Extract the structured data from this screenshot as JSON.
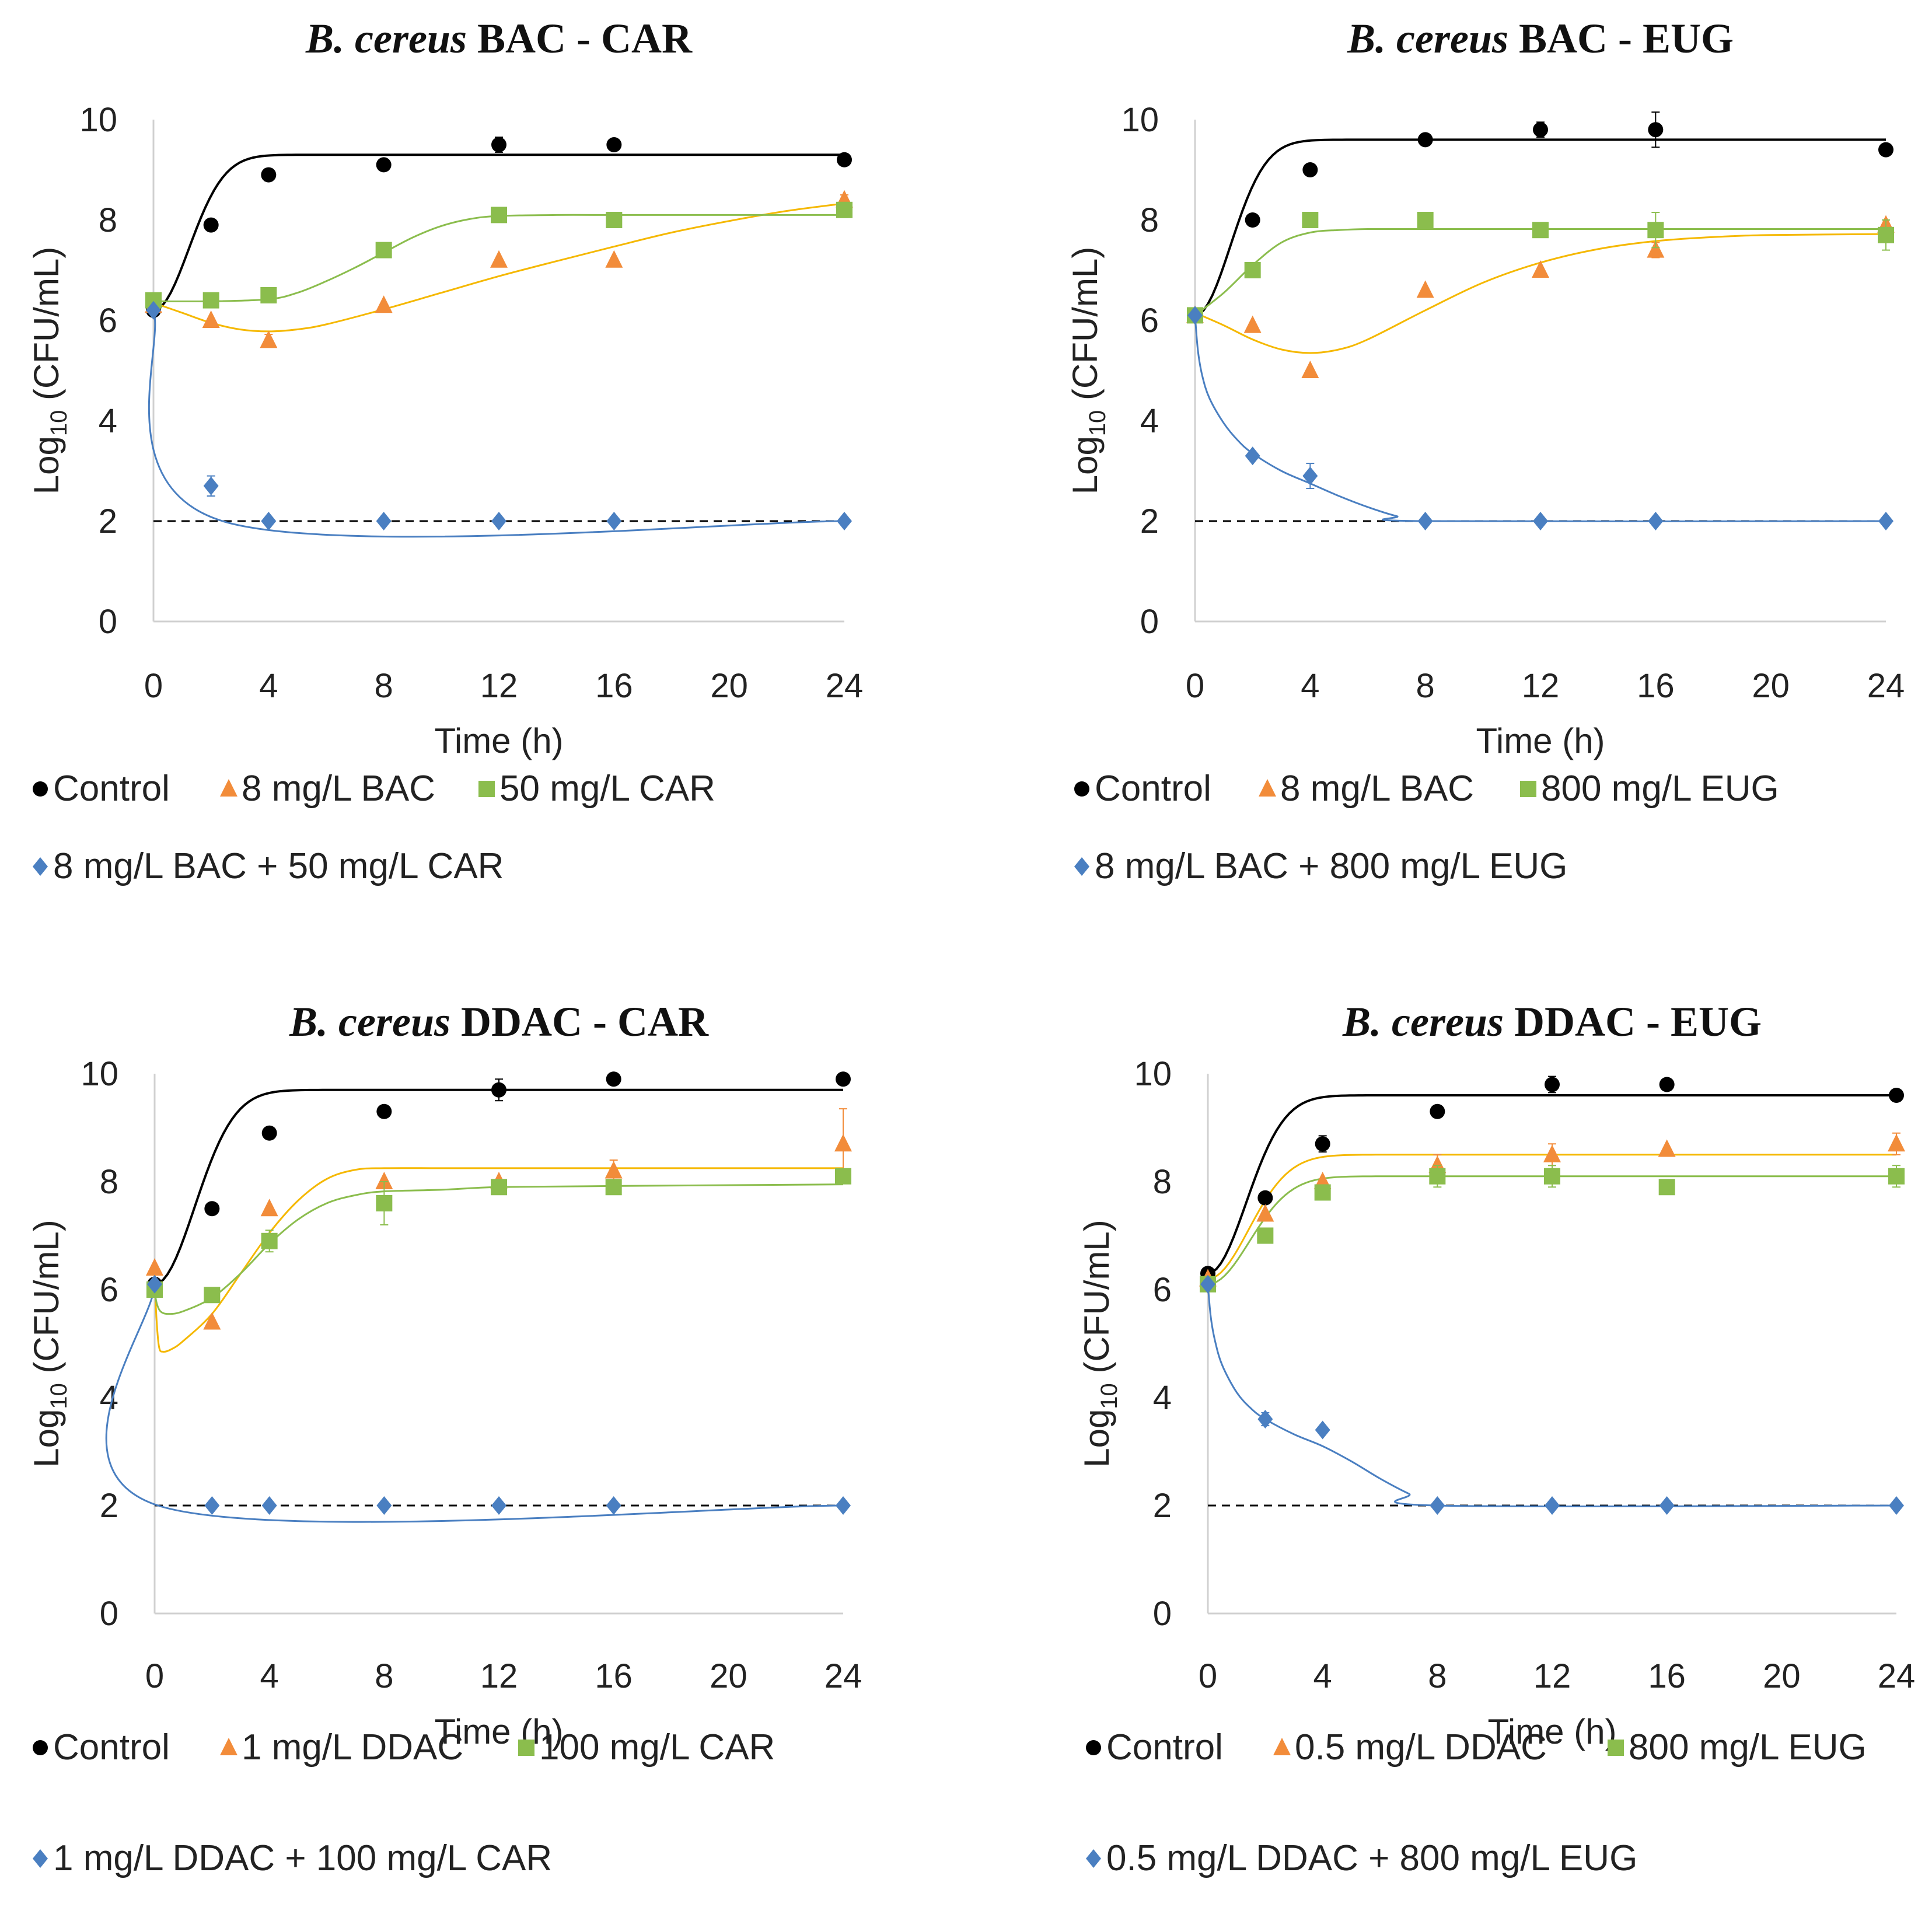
{
  "colors": {
    "control": "#000000",
    "qac": "#f28c3a",
    "phyto": "#8bbd4d",
    "combo": "#4a7fc1",
    "qac_fit": "#f5b800",
    "phyto_fit": "#8bbd4d",
    "axis": "#d0d0d0",
    "detection_limit": "#000000"
  },
  "chart_data": [
    {
      "type": "scatter",
      "panel": "top-left",
      "title_italic": "B. cereus",
      "title_rest": " BAC - CAR",
      "xlabel": "Time (h)",
      "ylabel_main": "Log",
      "ylabel_sub": "10",
      "ylabel_rest": " (CFU/mL)",
      "xlim": [
        0,
        24
      ],
      "ylim": [
        0,
        10
      ],
      "xticks": [
        0,
        4,
        8,
        12,
        16,
        20,
        24
      ],
      "yticks": [
        0,
        2,
        4,
        6,
        8,
        10
      ],
      "detection_limit": 2,
      "series": [
        {
          "name": "Control",
          "marker": "circle",
          "color": "control",
          "fit_color": "control",
          "x": [
            0,
            2,
            4,
            8,
            12,
            16,
            24
          ],
          "y": [
            6.2,
            7.9,
            8.9,
            9.1,
            9.5,
            9.5,
            9.2
          ],
          "err": [
            0,
            0,
            0.12,
            0,
            0.15,
            0,
            0
          ],
          "fit": {
            "kind": "logistic",
            "y0": 6.2,
            "ymax": 9.3,
            "mu": 1.0,
            "lag": 0
          }
        },
        {
          "name": "8 mg/L BAC",
          "marker": "triangle",
          "color": "qac",
          "fit_color": "qac_fit",
          "x": [
            0,
            2,
            4,
            8,
            12,
            16,
            24
          ],
          "y": [
            6.3,
            6.0,
            5.6,
            6.3,
            7.2,
            7.2,
            8.4
          ],
          "err": [
            0,
            0,
            0.12,
            0,
            0,
            0,
            0.1
          ],
          "fit": {
            "kind": "points",
            "x": [
              0,
              1,
              2,
              3,
              4,
              5,
              6,
              8,
              10,
              12,
              14,
              16,
              18,
              20,
              22,
              24
            ],
            "y": [
              6.35,
              6.15,
              5.95,
              5.82,
              5.78,
              5.82,
              5.92,
              6.22,
              6.55,
              6.88,
              7.18,
              7.47,
              7.75,
              7.98,
              8.18,
              8.33
            ]
          }
        },
        {
          "name": "50 mg/L CAR",
          "marker": "square",
          "color": "phyto",
          "fit_color": "phyto_fit",
          "x": [
            0,
            2,
            4,
            8,
            12,
            16,
            24
          ],
          "y": [
            6.4,
            6.4,
            6.5,
            7.4,
            8.1,
            8.0,
            8.2
          ],
          "err": [
            0,
            0,
            0,
            0,
            0,
            0.12,
            0.15
          ],
          "fit": {
            "kind": "points",
            "x": [
              0,
              2,
              4,
              5,
              6,
              7,
              8,
              9,
              10,
              11,
              12,
              14,
              16,
              20,
              24
            ],
            "y": [
              6.38,
              6.38,
              6.42,
              6.55,
              6.78,
              7.05,
              7.35,
              7.65,
              7.88,
              8.02,
              8.08,
              8.1,
              8.1,
              8.1,
              8.1
            ]
          }
        },
        {
          "name": "8 mg/L BAC + 50 mg/L CAR",
          "marker": "diamond",
          "color": "combo",
          "fit_color": "combo",
          "x": [
            0,
            2,
            4,
            8,
            12,
            16,
            24
          ],
          "y": [
            6.2,
            2.7,
            2.0,
            2.0,
            2.0,
            2.0,
            2.0
          ],
          "err": [
            0,
            0.2,
            0,
            0,
            0,
            0,
            0
          ],
          "fit": {
            "kind": "points",
            "x": [
              0,
              2.4,
              24
            ],
            "y": [
              6.2,
              2.0,
              2.0
            ]
          }
        }
      ]
    },
    {
      "type": "scatter",
      "panel": "top-right",
      "title_italic": "B. cereus",
      "title_rest": " BAC - EUG",
      "xlabel": "Time (h)",
      "ylabel_main": "Log",
      "ylabel_sub": "10",
      "ylabel_rest": " (CFU/mL)",
      "xlim": [
        0,
        24
      ],
      "ylim": [
        0,
        10
      ],
      "xticks": [
        0,
        4,
        8,
        12,
        16,
        20,
        24
      ],
      "yticks": [
        0,
        2,
        4,
        6,
        8,
        10
      ],
      "detection_limit": 2,
      "series": [
        {
          "name": "Control",
          "marker": "circle",
          "color": "control",
          "fit_color": "control",
          "x": [
            0,
            2,
            4,
            8,
            12,
            16,
            24
          ],
          "y": [
            6.1,
            8.0,
            9.0,
            9.6,
            9.8,
            9.8,
            9.4
          ],
          "err": [
            0,
            0,
            0,
            0,
            0.15,
            0.35,
            0
          ],
          "fit": {
            "kind": "logistic",
            "y0": 6.1,
            "ymax": 9.6,
            "mu": 1.0,
            "lag": 0
          }
        },
        {
          "name": "8 mg/L BAC",
          "marker": "triangle",
          "color": "qac",
          "fit_color": "qac_fit",
          "x": [
            0,
            2,
            4,
            8,
            12,
            16,
            24
          ],
          "y": [
            6.1,
            5.9,
            5.0,
            6.6,
            7.0,
            7.4,
            7.9
          ],
          "err": [
            0,
            0,
            0,
            0,
            0,
            0.15,
            0
          ],
          "fit": {
            "kind": "points",
            "x": [
              0,
              1,
              2,
              3,
              4,
              5,
              6,
              8,
              10,
              12,
              14,
              16,
              18,
              20,
              24
            ],
            "y": [
              6.15,
              5.9,
              5.62,
              5.42,
              5.35,
              5.42,
              5.62,
              6.2,
              6.75,
              7.15,
              7.42,
              7.58,
              7.66,
              7.7,
              7.72
            ]
          }
        },
        {
          "name": "800 mg/L EUG",
          "marker": "square",
          "color": "phyto",
          "fit_color": "phyto_fit",
          "x": [
            0,
            2,
            4,
            8,
            12,
            16,
            24
          ],
          "y": [
            6.1,
            7.0,
            8.0,
            8.0,
            7.8,
            7.8,
            7.7
          ],
          "err": [
            0,
            0,
            0,
            0,
            0.1,
            0.35,
            0.3
          ],
          "fit": {
            "kind": "points",
            "x": [
              0,
              1,
              2,
              3,
              4,
              5,
              6,
              8,
              12,
              16,
              24
            ],
            "y": [
              6.1,
              6.55,
              7.1,
              7.55,
              7.75,
              7.8,
              7.82,
              7.82,
              7.82,
              7.82,
              7.82
            ]
          }
        },
        {
          "name": "8 mg/L BAC + 800 mg/L EUG",
          "marker": "diamond",
          "color": "combo",
          "fit_color": "combo",
          "x": [
            0,
            2,
            4,
            8,
            12,
            16,
            24
          ],
          "y": [
            6.1,
            3.3,
            2.9,
            2.0,
            2.0,
            2.0,
            2.0
          ],
          "err": [
            0,
            0,
            0.25,
            0,
            0,
            0,
            0
          ],
          "fit": {
            "kind": "points",
            "x": [
              0,
              0.1,
              0.25,
              0.5,
              1,
              1.5,
              2,
              3,
              4,
              5,
              6,
              7,
              8,
              24
            ],
            "y": [
              6.1,
              5.4,
              4.9,
              4.45,
              3.95,
              3.6,
              3.35,
              3.0,
              2.75,
              2.5,
              2.28,
              2.1,
              2.0,
              2.0
            ]
          }
        }
      ]
    },
    {
      "type": "scatter",
      "panel": "bottom-left",
      "title_italic": "B. cereus",
      "title_rest": " DDAC - CAR",
      "xlabel": "Time (h)",
      "ylabel_main": "Log",
      "ylabel_sub": "10",
      "ylabel_rest": " (CFU/mL)",
      "xlim": [
        0,
        24
      ],
      "ylim": [
        0,
        10
      ],
      "xticks": [
        0,
        4,
        8,
        12,
        16,
        20,
        24
      ],
      "yticks": [
        0,
        2,
        4,
        6,
        8,
        10
      ],
      "detection_limit": 2,
      "series": [
        {
          "name": "Control",
          "marker": "circle",
          "color": "control",
          "fit_color": "control",
          "x": [
            0,
            2,
            4,
            8,
            12,
            16,
            24
          ],
          "y": [
            6.1,
            7.5,
            8.9,
            9.3,
            9.7,
            9.9,
            9.9
          ],
          "err": [
            0,
            0,
            0,
            0,
            0.2,
            0,
            0
          ],
          "fit": {
            "kind": "logistic",
            "y0": 6.1,
            "ymax": 9.7,
            "mu": 0.78,
            "lag": 0
          }
        },
        {
          "name": "1 mg/L DDAC",
          "marker": "triangle",
          "color": "qac",
          "fit_color": "qac_fit",
          "x": [
            0,
            2,
            4,
            8,
            12,
            16,
            24
          ],
          "y": [
            6.4,
            5.4,
            7.5,
            8.0,
            8.0,
            8.2,
            8.7
          ],
          "err": [
            0,
            0,
            0,
            0,
            0,
            0.2,
            0.65
          ],
          "fit": {
            "kind": "points",
            "x": [
              0,
              0.05,
              0.15,
              0.3,
              0.6,
              1,
              2,
              3,
              4,
              5,
              6,
              7,
              8,
              10,
              12,
              16,
              24
            ],
            "y": [
              6.4,
              5.6,
              4.95,
              4.85,
              4.9,
              5.05,
              5.55,
              6.3,
              7.05,
              7.65,
              8.05,
              8.22,
              8.25,
              8.25,
              8.25,
              8.25,
              8.25
            ]
          }
        },
        {
          "name": "100 mg/L CAR",
          "marker": "square",
          "color": "phyto",
          "fit_color": "phyto_fit",
          "x": [
            0,
            2,
            4,
            8,
            12,
            16,
            24
          ],
          "y": [
            6.0,
            5.9,
            6.9,
            7.6,
            7.9,
            7.9,
            8.1
          ],
          "err": [
            0,
            0,
            0.2,
            0.4,
            0,
            0,
            0
          ],
          "fit": {
            "kind": "points",
            "x": [
              0,
              0.05,
              0.2,
              0.5,
              1,
              2,
              3,
              4,
              5,
              6,
              7,
              8,
              10,
              12,
              16,
              24
            ],
            "y": [
              6.1,
              5.8,
              5.6,
              5.55,
              5.6,
              5.85,
              6.3,
              6.85,
              7.3,
              7.6,
              7.75,
              7.82,
              7.85,
              7.9,
              7.92,
              7.95
            ]
          }
        },
        {
          "name": "1 mg/L DDAC + 100 mg/L CAR",
          "marker": "diamond",
          "color": "combo",
          "fit_color": "combo",
          "x": [
            0,
            2,
            4,
            8,
            12,
            16,
            24
          ],
          "y": [
            6.1,
            2.0,
            2.0,
            2.0,
            2.0,
            2.0,
            2.0
          ],
          "err": [
            0,
            0,
            0,
            0,
            0,
            0,
            0
          ],
          "fit": {
            "kind": "points",
            "x": [
              0,
              0.12,
              24
            ],
            "y": [
              6.1,
              2.0,
              2.0
            ]
          }
        }
      ]
    },
    {
      "type": "scatter",
      "panel": "bottom-right",
      "title_italic": "B. cereus",
      "title_rest": " DDAC - EUG",
      "xlabel": "Time (h)",
      "ylabel_main": "Log",
      "ylabel_sub": "10",
      "ylabel_rest": " (CFU/mL)",
      "xlim": [
        0,
        24
      ],
      "ylim": [
        0,
        10
      ],
      "xticks": [
        0,
        4,
        8,
        12,
        16,
        20,
        24
      ],
      "yticks": [
        0,
        2,
        4,
        6,
        8,
        10
      ],
      "detection_limit": 2,
      "series": [
        {
          "name": "Control",
          "marker": "circle",
          "color": "control",
          "fit_color": "control",
          "x": [
            0,
            2,
            4,
            8,
            12,
            16,
            24
          ],
          "y": [
            6.3,
            7.7,
            8.7,
            9.3,
            9.8,
            9.8,
            9.6
          ],
          "err": [
            0,
            0,
            0.15,
            0,
            0.15,
            0,
            0
          ],
          "fit": {
            "kind": "logistic",
            "y0": 6.3,
            "ymax": 9.6,
            "mu": 0.85,
            "lag": 0
          }
        },
        {
          "name": "0.5 mg/L DDAC",
          "marker": "triangle",
          "color": "qac",
          "fit_color": "qac_fit",
          "x": [
            0,
            2,
            4,
            8,
            12,
            16,
            24
          ],
          "y": [
            6.2,
            7.4,
            8.0,
            8.3,
            8.5,
            8.6,
            8.7
          ],
          "err": [
            0,
            0,
            0,
            0.2,
            0.2,
            0,
            0.2
          ],
          "fit": {
            "kind": "logistic",
            "y0": 6.2,
            "ymax": 8.5,
            "mu": 0.75,
            "lag": 0
          }
        },
        {
          "name": "800 mg/L EUG",
          "marker": "square",
          "color": "phyto",
          "fit_color": "phyto_fit",
          "x": [
            0,
            2,
            4,
            8,
            12,
            16,
            24
          ],
          "y": [
            6.1,
            7.0,
            7.8,
            8.1,
            8.1,
            7.9,
            8.1
          ],
          "err": [
            0,
            0,
            0,
            0.2,
            0.2,
            0,
            0.2
          ],
          "fit": {
            "kind": "logistic",
            "y0": 6.1,
            "ymax": 8.1,
            "mu": 0.72,
            "lag": 0
          }
        },
        {
          "name": "0.5 mg/L DDAC + 800 mg/L EUG",
          "marker": "diamond",
          "color": "combo",
          "fit_color": "combo",
          "x": [
            0,
            2,
            4,
            8,
            12,
            16,
            24
          ],
          "y": [
            6.1,
            3.6,
            3.4,
            2.0,
            2.0,
            2.0,
            2.0
          ],
          "err": [
            0,
            0.12,
            0,
            0,
            0,
            0,
            0
          ],
          "fit": {
            "kind": "points",
            "x": [
              0,
              0.1,
              0.25,
              0.5,
              1,
              1.5,
              2,
              3,
              4,
              5,
              6,
              7,
              8,
              24
            ],
            "y": [
              6.1,
              5.5,
              5.05,
              4.6,
              4.1,
              3.8,
              3.6,
              3.32,
              3.1,
              2.82,
              2.5,
              2.22,
              2.0,
              2.0
            ]
          }
        }
      ]
    }
  ]
}
